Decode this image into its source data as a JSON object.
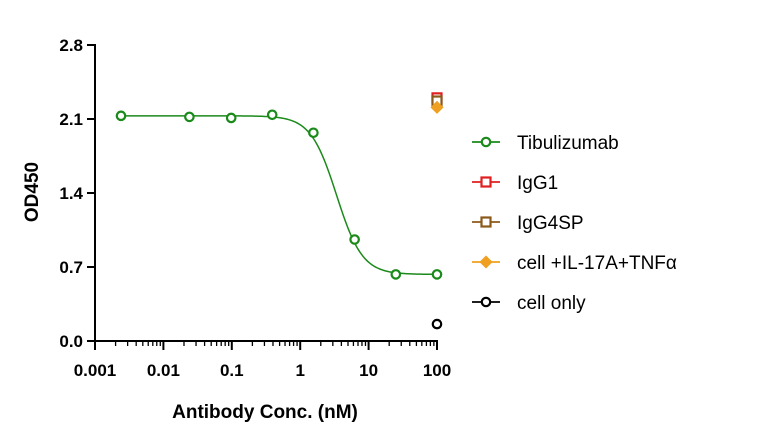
{
  "chart_data": {
    "type": "scatter",
    "title": "",
    "xlabel": "Antibody Conc. (nM)",
    "ylabel": "OD450",
    "xscale": "log",
    "xlim": [
      0.001,
      100
    ],
    "ylim": [
      0.0,
      2.8
    ],
    "xticks": [
      "0.001",
      "0.01",
      "0.1",
      "1",
      "10",
      "100"
    ],
    "yticks": [
      "0.0",
      "0.7",
      "1.4",
      "2.1",
      "2.8"
    ],
    "grid": false,
    "legend_position": "right",
    "series": [
      {
        "name": "Tibulizumab",
        "color": "#1a8a1a",
        "marker": "circle",
        "fit_curve": true,
        "x": [
          0.0024,
          0.024,
          0.098,
          0.39,
          1.56,
          6.25,
          25,
          100
        ],
        "y": [
          2.13,
          2.12,
          2.11,
          2.14,
          1.97,
          0.96,
          0.63,
          0.63
        ]
      },
      {
        "name": "IgG1",
        "color": "#e02020",
        "marker": "square",
        "x": [
          100
        ],
        "y": [
          2.3
        ]
      },
      {
        "name": "IgG4SP",
        "color": "#8b5a1a",
        "marker": "square",
        "x": [
          100
        ],
        "y": [
          2.27
        ]
      },
      {
        "name": "cell +IL-17A+TNFα",
        "color": "#f0a020",
        "marker": "diamond",
        "x": [
          100
        ],
        "y": [
          2.21
        ]
      },
      {
        "name": "cell only",
        "color": "#000000",
        "marker": "circle",
        "x": [
          100
        ],
        "y": [
          0.16
        ]
      }
    ]
  }
}
